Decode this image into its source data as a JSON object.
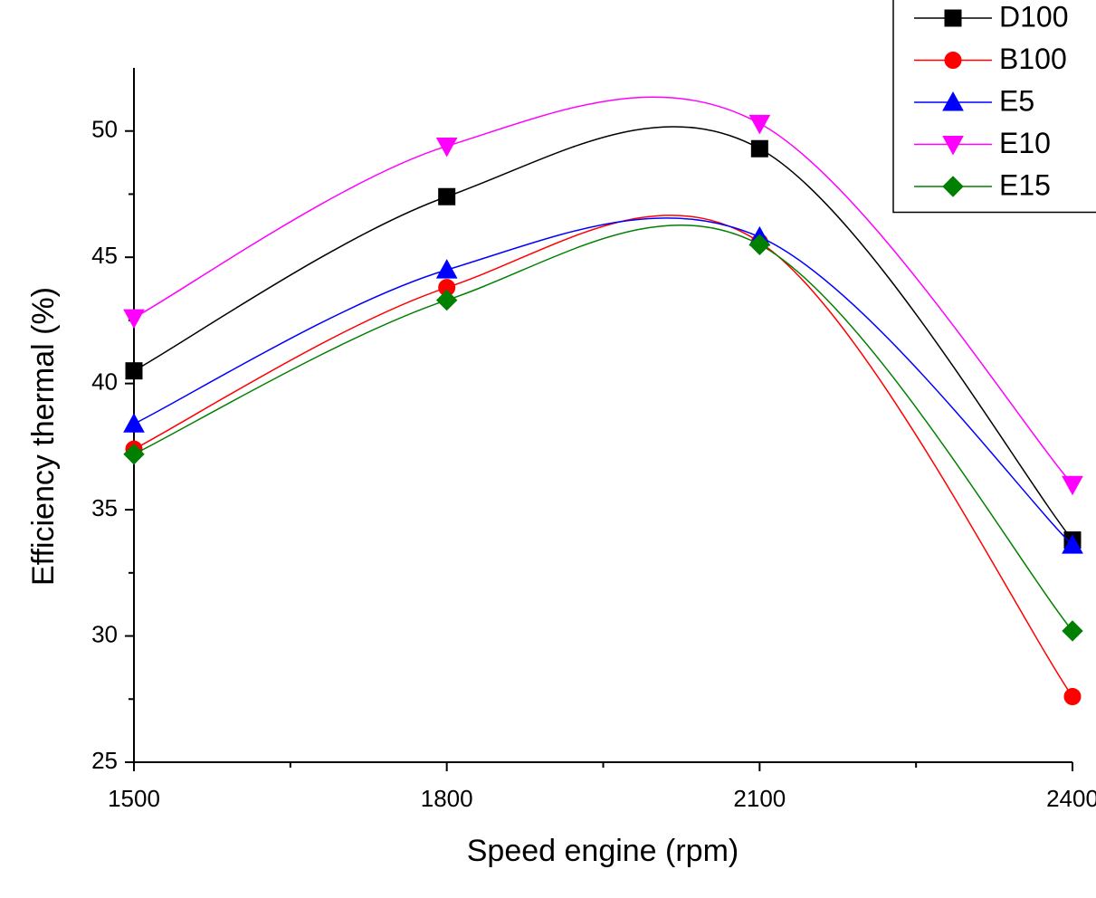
{
  "chart_data": {
    "type": "line",
    "smooth": true,
    "x_label": "Speed engine (rpm)",
    "y_label": "Efficiency thermal (%)",
    "x": [
      1500,
      1800,
      2100,
      2400
    ],
    "xlim": [
      1500,
      2400
    ],
    "xticks": [
      1500,
      1800,
      2100,
      2400
    ],
    "ylim": [
      25,
      52.5
    ],
    "yticks": [
      25,
      30,
      35,
      40,
      45,
      50
    ],
    "legend": "top-right",
    "series": [
      {
        "name": "D100",
        "color": "#000000",
        "marker": "square",
        "values": [
          40.5,
          47.4,
          49.3,
          33.8
        ]
      },
      {
        "name": "B100",
        "color": "#ff0000",
        "marker": "circle",
        "values": [
          37.4,
          43.8,
          45.6,
          27.6
        ]
      },
      {
        "name": "E5",
        "color": "#0000ff",
        "marker": "triangle-up",
        "values": [
          38.4,
          44.5,
          45.8,
          33.6
        ]
      },
      {
        "name": "E10",
        "color": "#ff00ff",
        "marker": "triangle-down",
        "values": [
          42.6,
          49.4,
          50.3,
          36.0
        ]
      },
      {
        "name": "E15",
        "color": "#008000",
        "marker": "diamond",
        "values": [
          37.2,
          43.3,
          45.5,
          30.2
        ]
      }
    ]
  }
}
